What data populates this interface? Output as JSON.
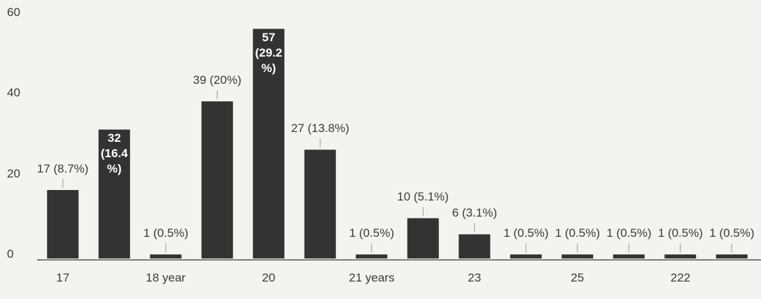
{
  "chart_data": {
    "type": "bar",
    "categories": [
      "17",
      null,
      "18 year",
      null,
      "20",
      null,
      "21 years",
      null,
      "23",
      null,
      "25",
      null,
      "222",
      null
    ],
    "values": [
      17,
      32,
      1,
      39,
      57,
      27,
      1,
      10,
      6,
      1,
      1,
      1,
      1,
      1
    ],
    "value_labels": [
      "17 (8.7%)",
      "32 (16.4%)",
      "1 (0.5%)",
      "39 (20%)",
      "57 (29.2%)",
      "27 (13.8%)",
      "1 (0.5%)",
      "10 (5.1%)",
      "6 (3.1%)",
      "1 (0.5%)",
      "1 (0.5%)",
      "1 (0.5%)",
      "1 (0.5%)",
      "1 (0.5%)"
    ],
    "color": "#333333",
    "ylim": [
      0,
      60
    ],
    "yticks": [
      0,
      20,
      40,
      60
    ],
    "grid": false
  }
}
